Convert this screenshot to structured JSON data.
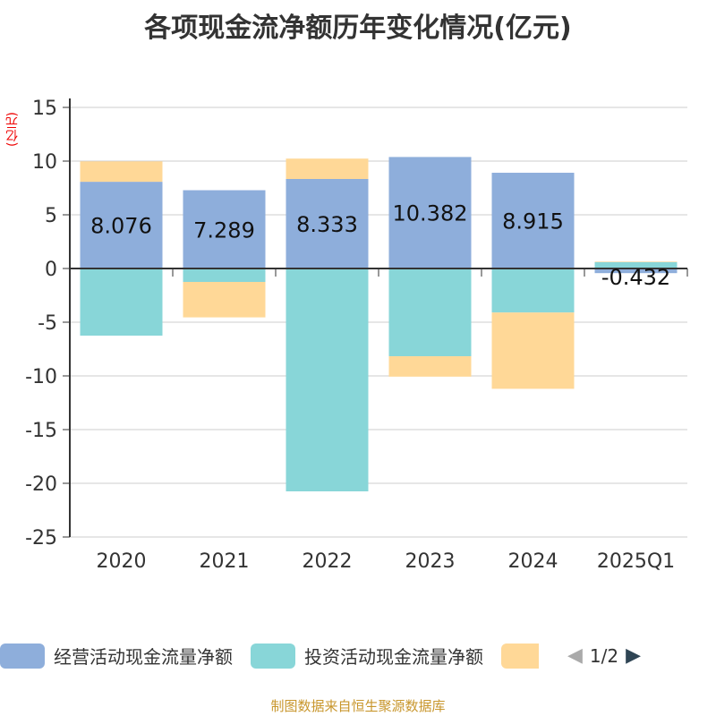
{
  "chart_data": {
    "type": "bar",
    "stacked": true,
    "title": "各项现金流净额历年变化情况(亿元)",
    "ylabel": "(亿元)",
    "categories": [
      "2020",
      "2021",
      "2022",
      "2023",
      "2024",
      "2025Q1"
    ],
    "ylim": [
      -25,
      15
    ],
    "yticks": [
      15,
      10,
      5,
      0,
      -5,
      -10,
      -15,
      -20,
      -25
    ],
    "grid": true,
    "legend_position": "bottom",
    "series": [
      {
        "name": "经营活动现金流量净额",
        "color": "#8eaedb",
        "values": [
          8.076,
          7.289,
          8.333,
          10.382,
          8.915,
          -0.432
        ],
        "labels": [
          "8.076",
          "7.289",
          "8.333",
          "10.382",
          "8.915",
          "-0.432"
        ]
      },
      {
        "name": "投资活动现金流量净额",
        "color": "#88d6d8",
        "values": [
          -6.25,
          -1.25,
          -20.75,
          -8.17,
          -4.1,
          0.6
        ]
      },
      {
        "color": "#ffd897",
        "values": [
          1.9,
          -3.3,
          1.9,
          -1.9,
          -7.1,
          0.05
        ]
      }
    ]
  },
  "legend": {
    "page": "1/2"
  },
  "source": "制图数据来自恒生聚源数据库"
}
